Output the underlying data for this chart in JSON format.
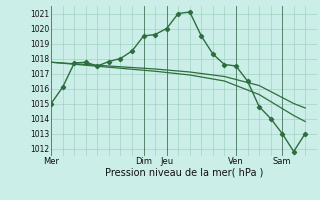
{
  "xlabel": "Pression niveau de la mer( hPa )",
  "background_color": "#cceee8",
  "grid_color": "#99ccbb",
  "line_color": "#2d6e3e",
  "dark_line_color": "#1a4a2a",
  "ylim": [
    1011.5,
    1021.5
  ],
  "xlim": [
    0,
    46
  ],
  "series1_x": [
    0,
    2,
    4,
    6,
    8,
    10,
    12,
    14,
    16,
    18,
    20,
    22,
    24,
    26,
    28,
    30,
    32,
    34,
    36,
    38,
    40,
    42,
    44
  ],
  "series1_y": [
    1015.0,
    1016.1,
    1017.7,
    1017.75,
    1017.5,
    1017.8,
    1018.0,
    1018.5,
    1019.5,
    1019.6,
    1020.0,
    1021.0,
    1021.1,
    1019.5,
    1018.3,
    1017.6,
    1017.5,
    1016.5,
    1014.8,
    1014.0,
    1013.0,
    1011.8,
    1013.0
  ],
  "series2_x": [
    0,
    6,
    12,
    18,
    24,
    30,
    36,
    42,
    44
  ],
  "series2_y": [
    1017.75,
    1017.6,
    1017.45,
    1017.3,
    1017.1,
    1016.8,
    1016.2,
    1015.0,
    1014.7
  ],
  "series3_x": [
    0,
    6,
    12,
    18,
    24,
    30,
    36,
    42,
    44
  ],
  "series3_y": [
    1017.75,
    1017.55,
    1017.35,
    1017.15,
    1016.9,
    1016.5,
    1015.6,
    1014.2,
    1013.8
  ],
  "yticks": [
    1012,
    1013,
    1014,
    1015,
    1016,
    1017,
    1018,
    1019,
    1020,
    1021
  ],
  "xtick_positions": [
    0,
    16,
    20,
    32,
    40,
    46
  ],
  "xtick_labels": [
    "Mer",
    "Dim",
    "Jeu",
    "Ven",
    "Sam",
    ""
  ],
  "day_vlines": [
    0,
    16,
    20,
    32,
    40
  ],
  "grid_x_step": 2,
  "figsize": [
    3.2,
    2.0
  ],
  "dpi": 100
}
